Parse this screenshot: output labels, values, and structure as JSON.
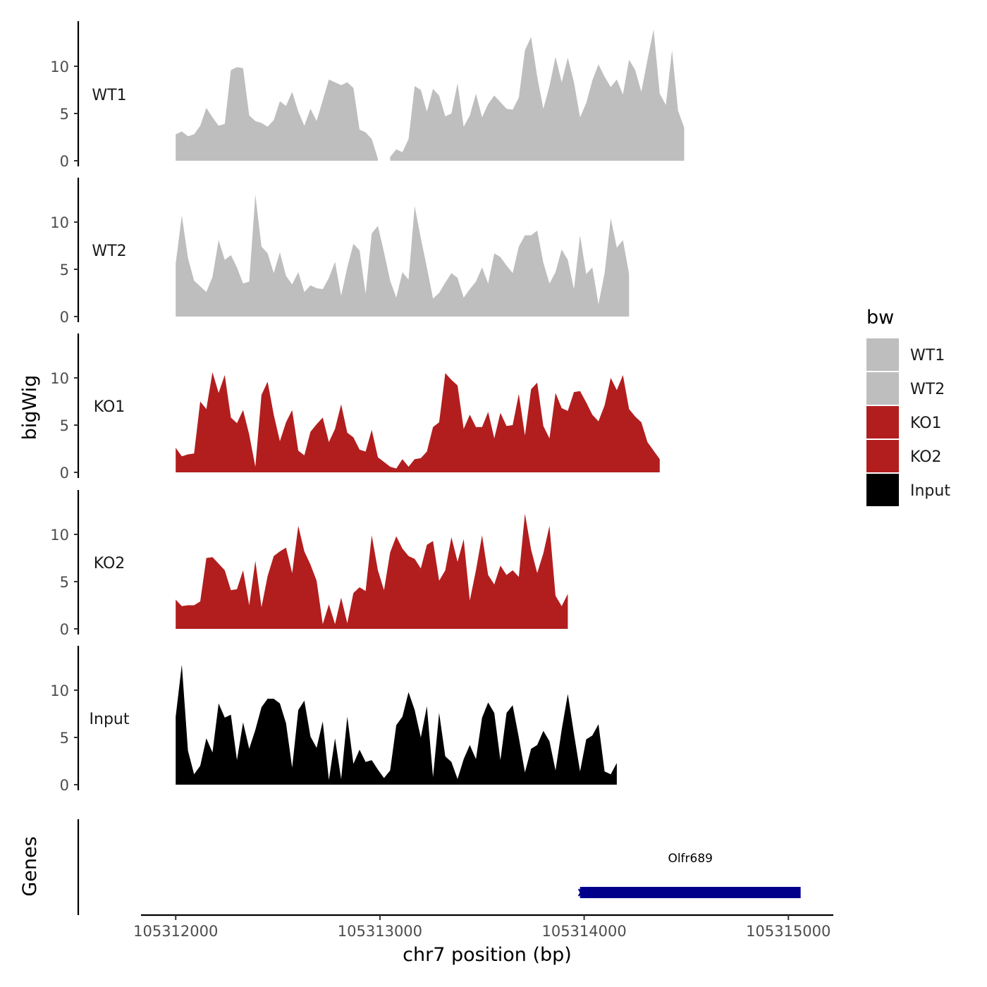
{
  "chart_data": {
    "type": "area",
    "title": "",
    "xlabel": "chr7 position (bp)",
    "ylabel": "bigWig",
    "xlim": [
      105311830,
      105315220
    ],
    "x_ticks": [
      105312000,
      105313000,
      105314000,
      105315000
    ],
    "x_tick_labels": [
      "105312000",
      "105313000",
      "105314000",
      "105315000"
    ],
    "ylim": [
      0,
      14.5
    ],
    "y_ticks": [
      0,
      5,
      10
    ],
    "y_tick_labels": [
      "0",
      "5",
      "10"
    ],
    "grid": false,
    "x_start": 105312000,
    "x_step": 30,
    "series": [
      {
        "name": "WT1",
        "color": "#bebebe",
        "values": [
          2.8,
          3.1,
          2.6,
          2.8,
          3.7,
          5.6,
          4.6,
          3.7,
          3.9,
          9.6,
          9.9,
          9.8,
          4.8,
          4.2,
          4.0,
          3.6,
          4.3,
          6.3,
          5.8,
          7.3,
          5.2,
          3.7,
          5.5,
          4.2,
          6.4,
          8.6,
          8.3,
          8.0,
          8.3,
          7.7,
          3.3,
          3.0,
          2.3,
          0.2,
          null,
          0.4,
          1.2,
          0.9,
          2.3,
          7.9,
          7.5,
          5.2,
          7.6,
          6.9,
          4.7,
          5.0,
          8.2,
          3.6,
          4.8,
          7.1,
          4.6,
          6.0,
          6.9,
          6.2,
          5.5,
          5.4,
          6.7,
          11.7,
          13.1,
          8.9,
          5.5,
          7.9,
          11.0,
          8.3,
          10.9,
          8.3,
          4.6,
          6.1,
          8.5,
          10.2,
          8.9,
          7.8,
          8.6,
          7.0,
          10.7,
          9.6,
          7.3,
          10.7,
          13.9,
          7.1,
          5.9,
          11.7,
          5.3,
          3.5
        ]
      },
      {
        "name": "WT2",
        "color": "#bebebe",
        "values": [
          5.6,
          10.7,
          6.2,
          3.8,
          3.2,
          2.6,
          4.2,
          8.1,
          6.0,
          6.5,
          5.2,
          3.5,
          3.7,
          12.9,
          7.4,
          6.7,
          4.6,
          6.8,
          4.3,
          3.4,
          4.7,
          2.6,
          3.3,
          3.0,
          2.9,
          4.1,
          5.8,
          2.2,
          5.2,
          7.7,
          7.0,
          2.4,
          8.8,
          9.6,
          6.8,
          3.8,
          2.0,
          4.7,
          3.9,
          11.7,
          8.3,
          5.2,
          1.9,
          2.5,
          3.6,
          4.6,
          4.1,
          2.0,
          2.9,
          3.7,
          5.2,
          3.5,
          6.7,
          6.3,
          5.4,
          4.6,
          7.4,
          8.6,
          8.6,
          9.1,
          5.7,
          3.5,
          4.7,
          7.1,
          6.0,
          2.9,
          8.6,
          4.5,
          5.2,
          1.3,
          4.6,
          10.4,
          7.3,
          8.1,
          4.5
        ]
      },
      {
        "name": "KO1",
        "color": "#b21e1e",
        "values": [
          2.6,
          1.7,
          1.9,
          2.0,
          7.5,
          6.7,
          10.6,
          8.4,
          10.3,
          5.8,
          5.2,
          6.6,
          4.0,
          0.6,
          8.2,
          9.6,
          6.1,
          3.3,
          5.3,
          6.6,
          2.3,
          1.8,
          4.3,
          5.1,
          5.8,
          3.2,
          4.6,
          7.2,
          4.2,
          3.7,
          2.4,
          2.2,
          4.5,
          1.6,
          1.1,
          0.6,
          0.4,
          1.4,
          0.6,
          1.4,
          1.5,
          2.2,
          4.8,
          5.3,
          10.5,
          9.8,
          9.2,
          4.6,
          6.1,
          4.8,
          4.8,
          6.4,
          3.6,
          6.3,
          4.9,
          5.0,
          8.3,
          3.9,
          8.8,
          9.5,
          4.9,
          3.6,
          8.4,
          6.8,
          6.5,
          8.5,
          8.6,
          7.4,
          6.1,
          5.4,
          7.1,
          10.0,
          8.7,
          10.3,
          6.7,
          5.9,
          5.3,
          3.2,
          2.3,
          1.4
        ]
      },
      {
        "name": "KO2",
        "color": "#b21e1e",
        "values": [
          3.1,
          2.4,
          2.5,
          2.5,
          2.9,
          7.5,
          7.6,
          6.9,
          6.2,
          4.1,
          4.2,
          6.2,
          2.5,
          7.2,
          2.3,
          5.6,
          7.7,
          8.2,
          8.6,
          5.9,
          10.9,
          8.2,
          6.8,
          5.1,
          0.5,
          2.6,
          0.5,
          3.3,
          0.6,
          3.8,
          4.4,
          4.0,
          9.9,
          6.2,
          4.1,
          8.1,
          9.8,
          8.5,
          7.7,
          7.4,
          6.4,
          8.9,
          9.3,
          5.1,
          6.2,
          9.7,
          7.1,
          9.5,
          3.0,
          6.2,
          9.9,
          5.7,
          4.7,
          6.7,
          5.7,
          6.2,
          5.5,
          12.2,
          8.4,
          5.9,
          8.0,
          10.9,
          3.5,
          2.4,
          3.7
        ]
      },
      {
        "name": "Input",
        "color": "#000000",
        "values": [
          7.2,
          12.7,
          3.6,
          1.1,
          2.0,
          4.9,
          3.4,
          8.6,
          7.1,
          7.4,
          2.6,
          6.6,
          3.8,
          5.8,
          8.2,
          9.1,
          9.1,
          8.6,
          6.5,
          1.8,
          7.9,
          8.9,
          5.1,
          3.9,
          6.7,
          0.5,
          4.9,
          0.6,
          7.2,
          2.2,
          3.7,
          2.4,
          2.6,
          1.6,
          0.7,
          1.5,
          6.3,
          7.2,
          9.8,
          7.9,
          5.0,
          8.3,
          0.8,
          7.6,
          3.0,
          2.4,
          0.6,
          2.7,
          4.2,
          2.7,
          7.1,
          8.7,
          7.6,
          2.6,
          7.6,
          8.4,
          5.0,
          1.3,
          3.8,
          4.2,
          5.7,
          4.6,
          1.5,
          5.8,
          9.6,
          5.4,
          1.4,
          4.8,
          5.2,
          6.4,
          1.4,
          1.1,
          2.3
        ]
      }
    ],
    "track_labels": [
      "WT1",
      "WT2",
      "KO1",
      "KO2",
      "Input"
    ],
    "legend": {
      "title": "bw",
      "position": "right",
      "entries": [
        {
          "label": "WT1",
          "color": "#bebebe"
        },
        {
          "label": "WT2",
          "color": "#bebebe"
        },
        {
          "label": "KO1",
          "color": "#b21e1e"
        },
        {
          "label": "KO2",
          "color": "#b21e1e"
        },
        {
          "label": "Input",
          "color": "#000000"
        }
      ]
    },
    "genes_panel": {
      "label": "Genes",
      "genes": [
        {
          "name": "Olfr689",
          "start": 105313980,
          "end": 105315060,
          "color": "#00008b"
        }
      ]
    }
  }
}
